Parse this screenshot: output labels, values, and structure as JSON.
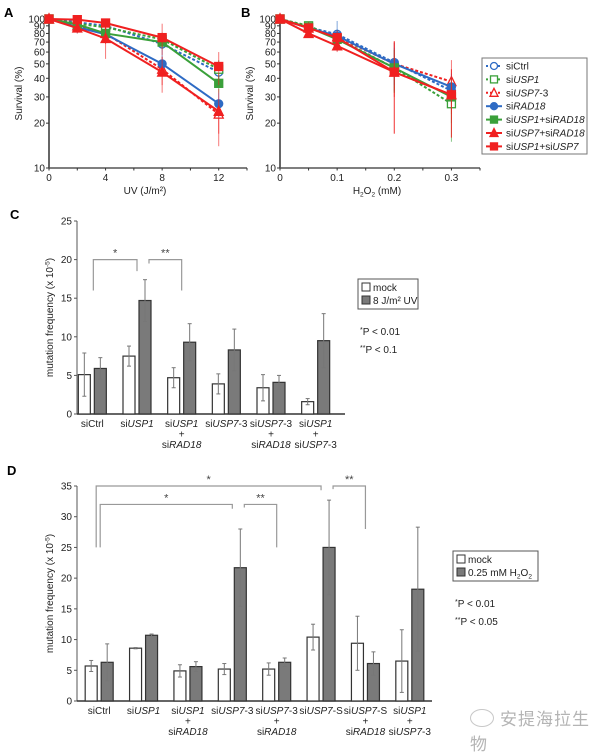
{
  "figure": {
    "panels": [
      "A",
      "B",
      "C",
      "D"
    ],
    "watermark": "安提海拉生物"
  },
  "legend_ab": [
    {
      "label": "siCtrl",
      "parts": [
        [
          "si",
          false
        ],
        [
          "Ctrl",
          false
        ]
      ],
      "color": "#2e6bc4",
      "marker": "circle-open",
      "dash": true
    },
    {
      "label": "siUSP1",
      "parts": [
        [
          "si",
          false
        ],
        [
          "USP1",
          true
        ]
      ],
      "color": "#3aa03a",
      "marker": "square-open",
      "dash": true
    },
    {
      "label": "siUSP7-3",
      "parts": [
        [
          "si",
          false
        ],
        [
          "USP7",
          true
        ],
        [
          "-3",
          false
        ]
      ],
      "color": "#f02020",
      "marker": "triangle-open",
      "dash": true
    },
    {
      "label": "siRAD18",
      "parts": [
        [
          "si",
          false
        ],
        [
          "RAD18",
          true
        ]
      ],
      "color": "#2e6bc4",
      "marker": "circle",
      "dash": false
    },
    {
      "label": "siUSP1+siRAD18",
      "parts": [
        [
          "si",
          false
        ],
        [
          "USP1",
          true
        ],
        [
          "+si",
          false
        ],
        [
          "RAD18",
          true
        ]
      ],
      "color": "#3aa03a",
      "marker": "square",
      "dash": false
    },
    {
      "label": "siUSP7+siRAD18",
      "parts": [
        [
          "si",
          false
        ],
        [
          "USP7",
          true
        ],
        [
          "+si",
          false
        ],
        [
          "RAD18",
          true
        ]
      ],
      "color": "#f02020",
      "marker": "triangle",
      "dash": false
    },
    {
      "label": "siUSP1+siUSP7",
      "parts": [
        [
          "si",
          false
        ],
        [
          "USP1",
          true
        ],
        [
          "+si",
          false
        ],
        [
          "USP7",
          true
        ]
      ],
      "color": "#f02020",
      "marker": "square",
      "dash": false
    }
  ],
  "chart_data": [
    {
      "panel": "A",
      "type": "line",
      "title": "",
      "xlabel": "UV (J/m²)",
      "ylabel": "Survival (%)",
      "yscale": "log",
      "ylim": [
        10,
        100
      ],
      "xlim": [
        0,
        14
      ],
      "xticks": [
        0,
        4,
        8,
        12
      ],
      "yticks": [
        10,
        20,
        30,
        40,
        50,
        60,
        70,
        80,
        90,
        100
      ],
      "x": [
        0,
        2,
        4,
        8,
        12
      ],
      "series": [
        {
          "name": "siCtrl",
          "values": [
            100,
            95,
            90,
            68,
            44
          ],
          "err": [
            3,
            6,
            6,
            10,
            8
          ]
        },
        {
          "name": "siUSP1",
          "values": [
            100,
            93,
            88,
            73,
            46
          ],
          "err": [
            3,
            5,
            6,
            8,
            7
          ]
        },
        {
          "name": "siUSP7-3",
          "values": [
            100,
            90,
            80,
            46,
            23
          ],
          "err": [
            3,
            8,
            12,
            10,
            6
          ]
        },
        {
          "name": "siRAD18",
          "values": [
            100,
            88,
            79,
            50,
            27
          ],
          "err": [
            3,
            8,
            8,
            8,
            5
          ]
        },
        {
          "name": "siUSP1+siRAD18",
          "values": [
            100,
            92,
            80,
            70,
            37
          ],
          "err": [
            3,
            5,
            6,
            7,
            5
          ]
        },
        {
          "name": "siUSP7+siRAD18",
          "values": [
            100,
            87,
            74,
            44,
            24
          ],
          "err": [
            3,
            7,
            20,
            12,
            10
          ]
        },
        {
          "name": "siUSP1+siUSP7",
          "values": [
            100,
            99,
            94,
            75,
            48
          ],
          "err": [
            3,
            4,
            10,
            18,
            12
          ]
        }
      ]
    },
    {
      "panel": "B",
      "type": "line",
      "title": "",
      "xlabel": "H₂O₂ (mM)",
      "ylabel": "Survival (%)",
      "yscale": "log",
      "ylim": [
        10,
        100
      ],
      "xlim": [
        0,
        0.35
      ],
      "xticks": [
        0,
        0.1,
        0.2,
        0.3
      ],
      "yticks": [
        10,
        20,
        30,
        40,
        50,
        60,
        70,
        80,
        90,
        100
      ],
      "x": [
        0,
        0.05,
        0.1,
        0.2,
        0.3
      ],
      "series": [
        {
          "name": "siCtrl",
          "values": [
            100,
            88,
            79,
            51,
            33
          ],
          "err": [
            2,
            8,
            18,
            18,
            8
          ]
        },
        {
          "name": "siUSP1",
          "values": [
            100,
            90,
            74,
            47,
            27
          ],
          "err": [
            2,
            6,
            10,
            15,
            12
          ]
        },
        {
          "name": "siUSP7-3",
          "values": [
            100,
            87,
            76,
            50,
            38
          ],
          "err": [
            2,
            6,
            8,
            20,
            15
          ]
        },
        {
          "name": "siRAD18",
          "values": [
            100,
            87,
            77,
            50,
            35
          ],
          "err": [
            2,
            6,
            8,
            14,
            8
          ]
        },
        {
          "name": "siUSP1+siRAD18",
          "values": [
            100,
            88,
            73,
            47,
            30
          ],
          "err": [
            2,
            5,
            8,
            15,
            10
          ]
        },
        {
          "name": "siUSP7+siRAD18",
          "values": [
            100,
            80,
            66,
            44,
            31
          ],
          "err": [
            2,
            5,
            6,
            27,
            15
          ]
        },
        {
          "name": "siUSP1+siUSP7",
          "values": [
            100,
            87,
            75,
            44,
            31
          ],
          "err": [
            2,
            5,
            8,
            27,
            15
          ]
        }
      ]
    },
    {
      "panel": "C",
      "type": "bar",
      "title": "",
      "xlabel": "",
      "ylabel": "mutation frequency (x 10⁻⁵)",
      "ylim": [
        0,
        25
      ],
      "yticks": [
        0,
        5,
        10,
        15,
        20,
        25
      ],
      "categories": [
        {
          "lines": [
            [
              [
                "si",
                false
              ],
              [
                "Ctrl",
                false
              ]
            ]
          ]
        },
        {
          "lines": [
            [
              [
                "si",
                false
              ],
              [
                "USP1",
                true
              ]
            ]
          ]
        },
        {
          "lines": [
            [
              [
                "si",
                false
              ],
              [
                "USP1",
                true
              ]
            ],
            [
              [
                "+",
                false
              ]
            ],
            [
              [
                "si",
                false
              ],
              [
                "RAD18",
                true
              ]
            ]
          ]
        },
        {
          "lines": [
            [
              [
                "si",
                false
              ],
              [
                "USP7",
                true
              ],
              [
                "-3",
                false
              ]
            ]
          ]
        },
        {
          "lines": [
            [
              [
                "si",
                false
              ],
              [
                "USP7",
                true
              ],
              [
                "-3",
                false
              ]
            ],
            [
              [
                "+",
                false
              ]
            ],
            [
              [
                "si",
                false
              ],
              [
                "RAD18",
                true
              ]
            ]
          ]
        },
        {
          "lines": [
            [
              [
                "si",
                false
              ],
              [
                "USP1",
                true
              ]
            ],
            [
              [
                "+",
                false
              ]
            ],
            [
              [
                "si",
                false
              ],
              [
                "USP7",
                true
              ],
              [
                "-3",
                false
              ]
            ]
          ]
        }
      ],
      "category_names": [
        "siCtrl",
        "siUSP1",
        "siUSP1 + siRAD18",
        "siUSP7-3",
        "siUSP7-3 + siRAD18",
        "siUSP1 + siUSP7-3"
      ],
      "series": [
        {
          "name": "mock",
          "values": [
            5.1,
            7.5,
            4.7,
            3.9,
            3.4,
            1.6
          ],
          "err": [
            2.8,
            1.3,
            1.3,
            1.3,
            1.7,
            0.4
          ],
          "color": "#ffffff"
        },
        {
          "name": "8 J/m² UV",
          "values": [
            5.9,
            14.7,
            9.3,
            8.3,
            4.1,
            9.5
          ],
          "err": [
            1.4,
            2.7,
            2.4,
            2.7,
            0.9,
            3.5
          ],
          "color": "#7a7a7a"
        }
      ],
      "legend": {
        "items": [
          "mock",
          "8 J/m² UV"
        ],
        "placement": "right"
      },
      "significance": [
        {
          "from": 0,
          "to": 1,
          "label": "*",
          "level": 20
        },
        {
          "from": 1,
          "to": 2,
          "label": "**",
          "level": 20
        }
      ],
      "notes": [
        "*P < 0.01",
        "**P < 0.1"
      ]
    },
    {
      "panel": "D",
      "type": "bar",
      "title": "",
      "xlabel": "",
      "ylabel": "mutation frequency (x 10⁻⁵)",
      "ylim": [
        0,
        35
      ],
      "yticks": [
        0,
        5,
        10,
        15,
        20,
        25,
        30,
        35
      ],
      "categories": [
        {
          "lines": [
            [
              [
                "si",
                false
              ],
              [
                "Ctrl",
                false
              ]
            ]
          ]
        },
        {
          "lines": [
            [
              [
                "si",
                false
              ],
              [
                "USP1",
                true
              ]
            ]
          ]
        },
        {
          "lines": [
            [
              [
                "si",
                false
              ],
              [
                "USP1",
                true
              ]
            ],
            [
              [
                "+",
                false
              ]
            ],
            [
              [
                "si",
                false
              ],
              [
                "RAD18",
                true
              ]
            ]
          ]
        },
        {
          "lines": [
            [
              [
                "si",
                false
              ],
              [
                "USP7",
                true
              ],
              [
                "-3",
                false
              ]
            ]
          ]
        },
        {
          "lines": [
            [
              [
                "si",
                false
              ],
              [
                "USP7",
                true
              ],
              [
                "-3",
                false
              ]
            ],
            [
              [
                "+",
                false
              ]
            ],
            [
              [
                "si",
                false
              ],
              [
                "RAD18",
                true
              ]
            ]
          ]
        },
        {
          "lines": [
            [
              [
                "si",
                false
              ],
              [
                "USP7",
                true
              ],
              [
                "-S",
                false
              ]
            ]
          ]
        },
        {
          "lines": [
            [
              [
                "si",
                false
              ],
              [
                "USP7",
                true
              ],
              [
                "-S",
                false
              ]
            ],
            [
              [
                "+",
                false
              ]
            ],
            [
              [
                "si",
                false
              ],
              [
                "RAD18",
                true
              ]
            ]
          ]
        },
        {
          "lines": [
            [
              [
                "si",
                false
              ],
              [
                "USP1",
                true
              ]
            ],
            [
              [
                "+",
                false
              ]
            ],
            [
              [
                "si",
                false
              ],
              [
                "USP7",
                true
              ],
              [
                "-3",
                false
              ]
            ]
          ]
        }
      ],
      "category_names": [
        "siCtrl",
        "siUSP1",
        "siUSP1 + siRAD18",
        "siUSP7-3",
        "siUSP7-3 + siRAD18",
        "siUSP7-S",
        "siUSP7-S + siRAD18",
        "siUSP1 + siUSP7-3"
      ],
      "series": [
        {
          "name": "mock",
          "values": [
            5.7,
            8.6,
            4.9,
            5.2,
            5.2,
            10.4,
            9.4,
            6.5
          ],
          "err": [
            0.9,
            0.1,
            1.0,
            0.9,
            1.0,
            2.1,
            4.4,
            5.1
          ],
          "color": "#ffffff"
        },
        {
          "name": "0.25 mM H₂O₂",
          "values": [
            6.3,
            10.7,
            5.6,
            21.7,
            6.3,
            25.0,
            6.1,
            18.2
          ],
          "err": [
            3.0,
            0.2,
            0.8,
            6.3,
            0.7,
            7.7,
            1.9,
            10.1
          ],
          "color": "#7a7a7a"
        }
      ],
      "legend": {
        "items": [
          "mock",
          "0.25 mM H₂O₂"
        ],
        "placement": "right"
      },
      "significance": [
        {
          "from": 0,
          "to": 3,
          "label": "*",
          "level": 32
        },
        {
          "from": 0,
          "to": 5,
          "label": "*",
          "level": 35
        },
        {
          "from": 3,
          "to": 4,
          "label": "**",
          "level": 32
        },
        {
          "from": 5,
          "to": 6,
          "label": "**",
          "level": 35
        }
      ],
      "notes": [
        "*P < 0.01",
        "**P < 0.05"
      ]
    }
  ]
}
